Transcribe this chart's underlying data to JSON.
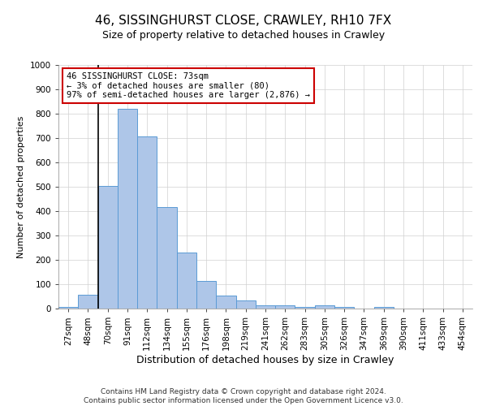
{
  "title_line1": "46, SISSINGHURST CLOSE, CRAWLEY, RH10 7FX",
  "title_line2": "Size of property relative to detached houses in Crawley",
  "xlabel": "Distribution of detached houses by size in Crawley",
  "ylabel": "Number of detached properties",
  "categories": [
    "27sqm",
    "48sqm",
    "70sqm",
    "91sqm",
    "112sqm",
    "134sqm",
    "155sqm",
    "176sqm",
    "198sqm",
    "219sqm",
    "241sqm",
    "262sqm",
    "283sqm",
    "305sqm",
    "326sqm",
    "347sqm",
    "369sqm",
    "390sqm",
    "411sqm",
    "433sqm",
    "454sqm"
  ],
  "bar_heights": [
    8,
    58,
    505,
    820,
    708,
    418,
    230,
    115,
    55,
    33,
    15,
    14,
    8,
    14,
    8,
    0,
    8,
    0,
    0,
    0,
    0
  ],
  "bar_color": "#aec6e8",
  "bar_edge_color": "#5b9bd5",
  "vline_color": "#000000",
  "annotation_text": "46 SISSINGHURST CLOSE: 73sqm\n← 3% of detached houses are smaller (80)\n97% of semi-detached houses are larger (2,876) →",
  "annotation_box_color": "#ffffff",
  "annotation_box_edge_color": "#cc0000",
  "ylim": [
    0,
    1000
  ],
  "yticks": [
    0,
    100,
    200,
    300,
    400,
    500,
    600,
    700,
    800,
    900,
    1000
  ],
  "footer_line1": "Contains HM Land Registry data © Crown copyright and database right 2024.",
  "footer_line2": "Contains public sector information licensed under the Open Government Licence v3.0.",
  "background_color": "#ffffff",
  "grid_color": "#d0d0d0",
  "title1_fontsize": 11,
  "title2_fontsize": 9,
  "tick_fontsize": 7.5,
  "ylabel_fontsize": 8,
  "xlabel_fontsize": 9,
  "footer_fontsize": 6.5
}
